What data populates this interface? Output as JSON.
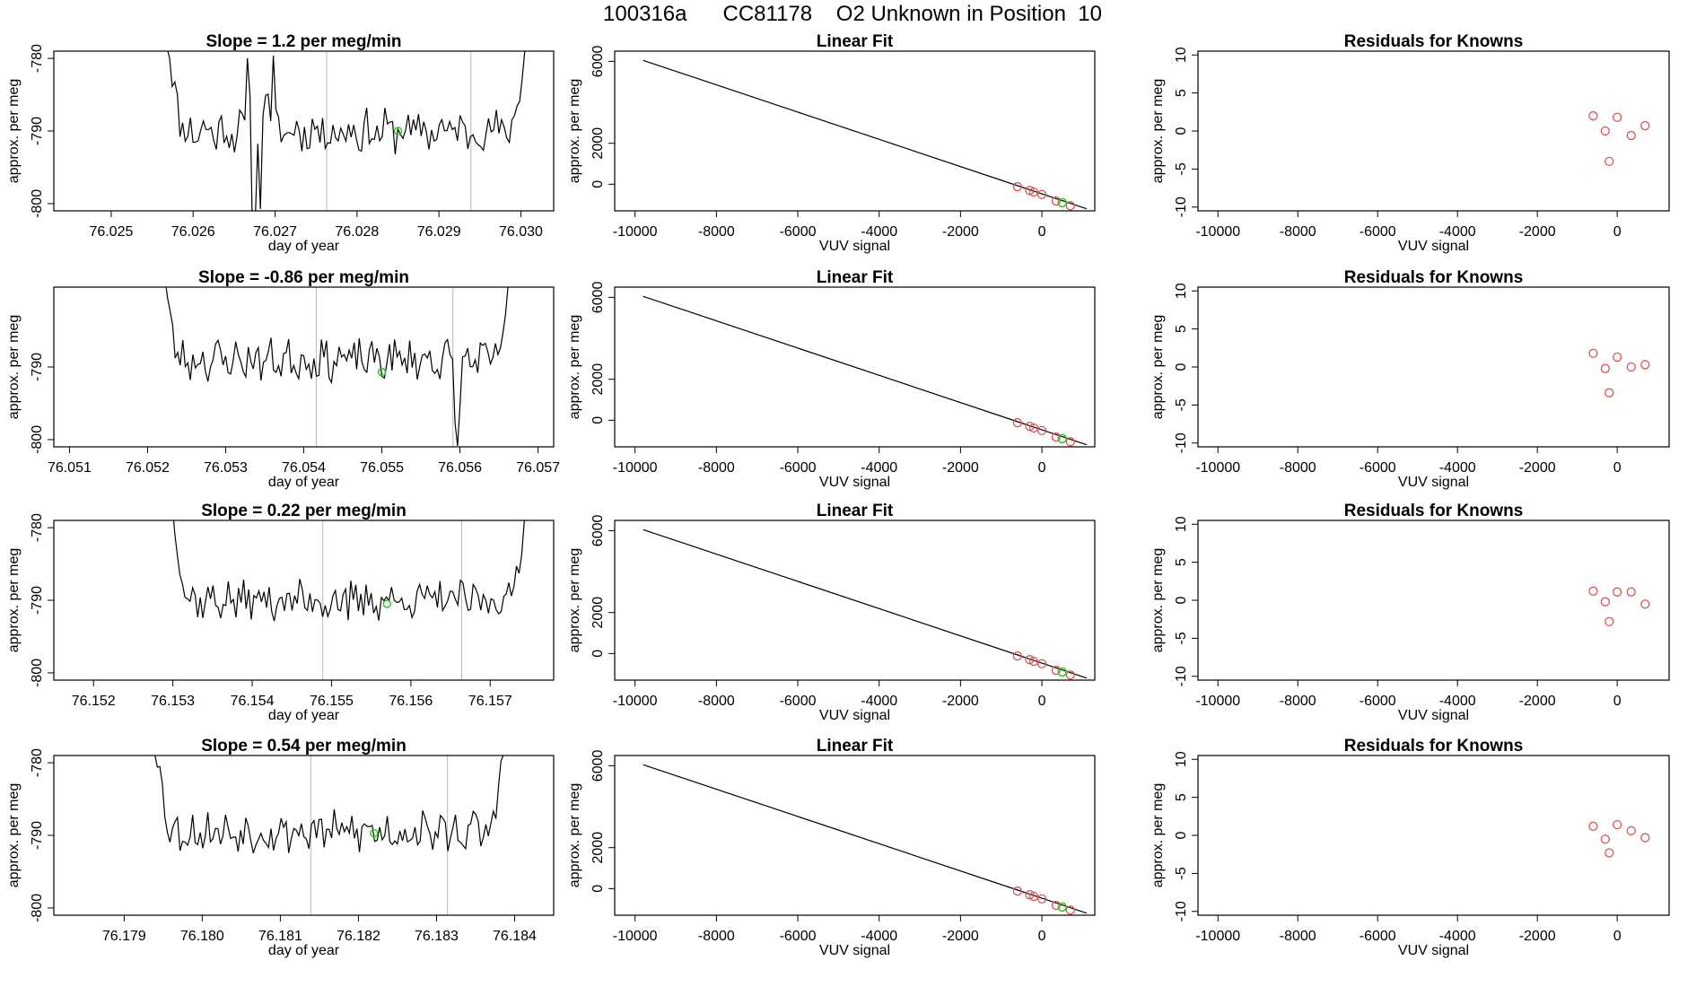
{
  "page_title": "100316a      CC81178    O2 Unknown in Position  10",
  "colors": {
    "trace": "#000000",
    "box": "#000000",
    "vline": "#b8b8b8",
    "known_point": "#e05252",
    "fit_point": "#22cc22"
  },
  "chart_data": [
    {
      "type": "line",
      "row": 0,
      "col": 0,
      "title": "Slope =  1.2  per meg/min",
      "xlabel": "day of year",
      "ylabel": "approx. per meg",
      "xlim": [
        76.0243,
        76.0304
      ],
      "ylim": [
        -801,
        -779
      ],
      "xticks": [
        "76.025",
        "76.026",
        "76.027",
        "76.028",
        "76.029",
        "76.030"
      ],
      "yticks": [
        "-800",
        "-790",
        "-780"
      ],
      "vlines": [
        76.02763,
        76.02939
      ],
      "trace": {
        "x_start": 76.02565,
        "x_end": 76.03008,
        "level": -790,
        "noise": 2.6,
        "seed": 11,
        "spikes": [
          [
            0.23,
            8
          ],
          [
            0.245,
            -14
          ],
          [
            0.265,
            -10
          ],
          [
            0.28,
            7
          ],
          [
            0.3,
            9
          ]
        ]
      },
      "marker": {
        "x": 76.0285,
        "y": -790
      }
    },
    {
      "type": "scatter",
      "row": 0,
      "col": 1,
      "title": "Linear Fit",
      "xlabel": "VUV signal",
      "ylabel": "approx. per meg",
      "xlim": [
        -10500,
        1300
      ],
      "ylim": [
        -1300,
        6500
      ],
      "xticks": [
        "-10000",
        "-8000",
        "-6000",
        "-4000",
        "-2000",
        "0"
      ],
      "yticks": [
        "0",
        "2000",
        "6000"
      ],
      "line": {
        "x": [
          -9800,
          1100
        ],
        "y": [
          6050,
          -1200
        ]
      },
      "points": [
        [
          -600,
          -120
        ],
        [
          -300,
          -300
        ],
        [
          -200,
          -380
        ],
        [
          0,
          -500
        ],
        [
          350,
          -820
        ],
        [
          700,
          -1050
        ]
      ],
      "fit_points": [
        [
          500,
          -900
        ]
      ]
    },
    {
      "type": "scatter",
      "row": 0,
      "col": 2,
      "title": "Residuals for Knowns",
      "xlabel": "VUV signal",
      "ylabel": "approx. per meg",
      "xlim": [
        -10500,
        1300
      ],
      "ylim": [
        -10.5,
        10.5
      ],
      "xticks": [
        "-10000",
        "-8000",
        "-6000",
        "-4000",
        "-2000",
        "0"
      ],
      "yticks": [
        "-10",
        "-5",
        "0",
        "5",
        "10"
      ],
      "points": [
        [
          -600,
          2
        ],
        [
          -300,
          0
        ],
        [
          -200,
          -4
        ],
        [
          0,
          1.8
        ],
        [
          350,
          -0.6
        ],
        [
          700,
          0.7
        ]
      ]
    },
    {
      "type": "line",
      "row": 1,
      "col": 0,
      "title": "Slope =  -0.86  per meg/min",
      "xlabel": "day of year",
      "ylabel": "approx. per meg",
      "xlim": [
        76.0508,
        76.0572
      ],
      "ylim": [
        -801,
        -779
      ],
      "xticks": [
        "76.051",
        "76.052",
        "76.053",
        "76.054",
        "76.055",
        "76.056",
        "76.057"
      ],
      "yticks": [
        "-800",
        "-790"
      ],
      "vlines": [
        76.05416,
        76.05591
      ],
      "trace": {
        "x_start": 76.05216,
        "x_end": 76.05668,
        "level": -789,
        "noise": 2.4,
        "seed": 23,
        "spikes": [
          [
            0.84,
            -9
          ],
          [
            0.85,
            -8
          ]
        ]
      },
      "marker": {
        "x": 76.055,
        "y": -790.7
      }
    },
    {
      "type": "scatter",
      "row": 1,
      "col": 1,
      "title": "Linear Fit",
      "xlabel": "VUV signal",
      "ylabel": "approx. per meg",
      "xlim": [
        -10500,
        1300
      ],
      "ylim": [
        -1300,
        6500
      ],
      "xticks": [
        "-10000",
        "-8000",
        "-6000",
        "-4000",
        "-2000",
        "0"
      ],
      "yticks": [
        "0",
        "2000",
        "6000"
      ],
      "line": {
        "x": [
          -9800,
          1100
        ],
        "y": [
          6050,
          -1200
        ]
      },
      "points": [
        [
          -600,
          -120
        ],
        [
          -300,
          -300
        ],
        [
          -200,
          -380
        ],
        [
          0,
          -500
        ],
        [
          350,
          -820
        ],
        [
          700,
          -1050
        ]
      ],
      "fit_points": [
        [
          500,
          -900
        ]
      ]
    },
    {
      "type": "scatter",
      "row": 1,
      "col": 2,
      "title": "Residuals for Knowns",
      "xlabel": "VUV signal",
      "ylabel": "approx. per meg",
      "xlim": [
        -10500,
        1300
      ],
      "ylim": [
        -10.5,
        10.5
      ],
      "xticks": [
        "-10000",
        "-8000",
        "-6000",
        "-4000",
        "-2000",
        "0"
      ],
      "yticks": [
        "-10",
        "-5",
        "0",
        "5",
        "10"
      ],
      "points": [
        [
          -600,
          1.8
        ],
        [
          -300,
          -0.2
        ],
        [
          -200,
          -3.4
        ],
        [
          0,
          1.3
        ],
        [
          350,
          0
        ],
        [
          700,
          0.3
        ]
      ]
    },
    {
      "type": "line",
      "row": 2,
      "col": 0,
      "title": "Slope =  0.22  per meg/min",
      "xlabel": "day of year",
      "ylabel": "approx. per meg",
      "xlim": [
        76.1515,
        76.1578
      ],
      "ylim": [
        -801,
        -779
      ],
      "xticks": [
        "76.152",
        "76.153",
        "76.154",
        "76.155",
        "76.156",
        "76.157"
      ],
      "yticks": [
        "-800",
        "-790",
        "-780"
      ],
      "vlines": [
        76.15489,
        76.15664
      ],
      "trace": {
        "x_start": 76.15296,
        "x_end": 76.15746,
        "level": -790,
        "noise": 2.3,
        "seed": 37,
        "spikes": [
          [
            0.5,
            -4
          ]
        ]
      },
      "marker": {
        "x": 76.1557,
        "y": -790.5
      }
    },
    {
      "type": "scatter",
      "row": 2,
      "col": 1,
      "title": "Linear Fit",
      "xlabel": "VUV signal",
      "ylabel": "approx. per meg",
      "xlim": [
        -10500,
        1300
      ],
      "ylim": [
        -1300,
        6500
      ],
      "xticks": [
        "-10000",
        "-8000",
        "-6000",
        "-4000",
        "-2000",
        "0"
      ],
      "yticks": [
        "0",
        "2000",
        "6000"
      ],
      "line": {
        "x": [
          -9800,
          1100
        ],
        "y": [
          6050,
          -1200
        ]
      },
      "points": [
        [
          -600,
          -120
        ],
        [
          -300,
          -300
        ],
        [
          -200,
          -380
        ],
        [
          0,
          -500
        ],
        [
          350,
          -820
        ],
        [
          700,
          -1050
        ]
      ],
      "fit_points": [
        [
          500,
          -900
        ]
      ]
    },
    {
      "type": "scatter",
      "row": 2,
      "col": 2,
      "title": "Residuals for Knowns",
      "xlabel": "VUV signal",
      "ylabel": "approx. per meg",
      "xlim": [
        -10500,
        1300
      ],
      "ylim": [
        -10.5,
        10.5
      ],
      "xticks": [
        "-10000",
        "-8000",
        "-6000",
        "-4000",
        "-2000",
        "0"
      ],
      "yticks": [
        "-10",
        "-5",
        "0",
        "5",
        "10"
      ],
      "points": [
        [
          -600,
          1.2
        ],
        [
          -300,
          -0.2
        ],
        [
          -200,
          -2.8
        ],
        [
          0,
          1.1
        ],
        [
          350,
          1.1
        ],
        [
          700,
          -0.5
        ]
      ]
    },
    {
      "type": "line",
      "row": 3,
      "col": 0,
      "title": "Slope =  0.54  per meg/min",
      "xlabel": "day of year",
      "ylabel": "approx. per meg",
      "xlim": [
        76.1781,
        76.1845
      ],
      "ylim": [
        -801,
        -779
      ],
      "xticks": [
        "76.179",
        "76.180",
        "76.181",
        "76.182",
        "76.183",
        "76.184"
      ],
      "yticks": [
        "-800",
        "-790",
        "-780"
      ],
      "vlines": [
        76.18139,
        76.18314
      ],
      "trace": {
        "x_start": 76.17936,
        "x_end": 76.18389,
        "level": -789.5,
        "noise": 2.4,
        "seed": 53,
        "spikes": []
      },
      "marker": {
        "x": 76.1822,
        "y": -789.7
      }
    },
    {
      "type": "scatter",
      "row": 3,
      "col": 1,
      "title": "Linear Fit",
      "xlabel": "VUV signal",
      "ylabel": "approx. per meg",
      "xlim": [
        -10500,
        1300
      ],
      "ylim": [
        -1300,
        6500
      ],
      "xticks": [
        "-10000",
        "-8000",
        "-6000",
        "-4000",
        "-2000",
        "0"
      ],
      "yticks": [
        "0",
        "2000",
        "6000"
      ],
      "line": {
        "x": [
          -9800,
          1100
        ],
        "y": [
          6050,
          -1200
        ]
      },
      "points": [
        [
          -600,
          -120
        ],
        [
          -300,
          -300
        ],
        [
          -200,
          -380
        ],
        [
          0,
          -500
        ],
        [
          350,
          -820
        ],
        [
          700,
          -1050
        ]
      ],
      "fit_points": [
        [
          500,
          -900
        ]
      ]
    },
    {
      "type": "scatter",
      "row": 3,
      "col": 2,
      "title": "Residuals for Knowns",
      "xlabel": "VUV signal",
      "ylabel": "approx. per meg",
      "xlim": [
        -10500,
        1300
      ],
      "ylim": [
        -10.5,
        10.5
      ],
      "xticks": [
        "-10000",
        "-8000",
        "-6000",
        "-4000",
        "-2000",
        "0"
      ],
      "yticks": [
        "-10",
        "-5",
        "0",
        "5",
        "10"
      ],
      "points": [
        [
          -600,
          1.2
        ],
        [
          -300,
          -0.5
        ],
        [
          -200,
          -2.3
        ],
        [
          0,
          1.4
        ],
        [
          350,
          0.6
        ],
        [
          700,
          -0.3
        ]
      ]
    }
  ]
}
